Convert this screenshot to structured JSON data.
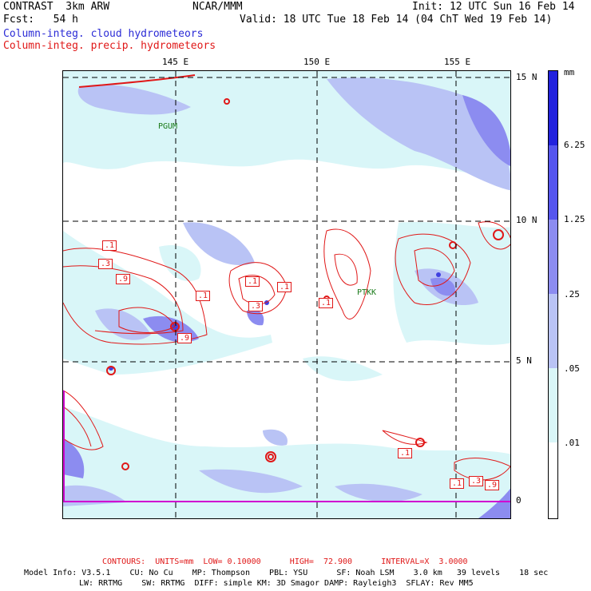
{
  "header": {
    "left1": "CONTRAST  3km ARW",
    "center1": "NCAR/MMM",
    "right1": "Init: 12 UTC Sun 16 Feb 14",
    "left2": "Fcst:   54 h",
    "right2": "Valid: 18 UTC Tue 18 Feb 14 (04 ChT Wed 19 Feb 14)",
    "legend_blue": "Column-integ. cloud hydrometeors",
    "legend_red": "Column-integ. precip. hydrometeors"
  },
  "map": {
    "lon_labels": [
      "145 E",
      "150 E",
      "155 E"
    ],
    "lat_labels": [
      "15 N",
      "10 N",
      "5 N",
      "0"
    ],
    "stations": [
      "PGUM",
      "PTKK"
    ],
    "contour_labels": [
      ".1",
      ".3",
      ".9",
      ".1",
      ".1",
      ".1",
      ".3",
      ".9",
      ".1",
      ".1",
      ".1",
      ".3",
      ".9"
    ]
  },
  "colorbar": {
    "unit": "mm",
    "labels": [
      "6.25",
      "1.25",
      ".25",
      ".05",
      ".01"
    ],
    "colors": [
      "#2222dd",
      "#5555ee",
      "#8c8cf0",
      "#b9c3f5",
      "#d9f6f8",
      "#ffffff"
    ]
  },
  "footer": {
    "contours": "CONTOURS:  UNITS=mm  LOW= 0.10000      HIGH=  72.900      INTERVAL=X  3.0000",
    "model1": "Model Info: V3.5.1    CU: No Cu    MP: Thompson    PBL: YSU      SF: Noah LSM    3.0 km   39 levels    18 sec",
    "model2": "LW: RRTMG    SW: RRTMG  DIFF: simple KM: 3D Smagor DAMP: Rayleigh3  SFLAY: Rev MM5"
  }
}
